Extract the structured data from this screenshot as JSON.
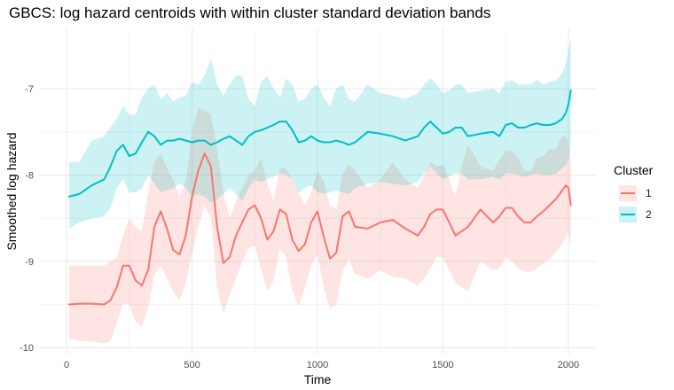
{
  "title": "GBCS: log hazard centroids with within cluster standard deviation bands",
  "legend": {
    "title": "Cluster",
    "items": [
      {
        "label": "1",
        "color": "#F8766D"
      },
      {
        "label": "2",
        "color": "#00BFC4"
      }
    ]
  },
  "chart_data": {
    "type": "line",
    "title": "GBCS: log hazard centroids with within cluster standard deviation bands",
    "xlabel": "Time",
    "ylabel": "Smoothed log hazard",
    "xlim": [
      -110,
      2110
    ],
    "ylim": [
      -10.08,
      -6.3
    ],
    "x_ticks": [
      0,
      500,
      1000,
      1500,
      2000
    ],
    "y_ticks": [
      -10,
      -9,
      -8,
      -7
    ],
    "grid": true,
    "legend_position": "right",
    "series": [
      {
        "name": "1",
        "color": "#F8766D",
        "x": [
          10,
          50,
          100,
          150,
          175,
          200,
          225,
          250,
          275,
          300,
          325,
          350,
          375,
          400,
          425,
          450,
          475,
          500,
          525,
          550,
          575,
          600,
          625,
          650,
          675,
          700,
          725,
          750,
          775,
          800,
          825,
          850,
          875,
          900,
          925,
          950,
          975,
          1000,
          1025,
          1050,
          1075,
          1100,
          1125,
          1150,
          1200,
          1250,
          1300,
          1350,
          1400,
          1425,
          1450,
          1475,
          1500,
          1525,
          1550,
          1575,
          1600,
          1650,
          1700,
          1725,
          1750,
          1775,
          1800,
          1825,
          1850,
          1875,
          1900,
          1925,
          1950,
          1975,
          1990,
          2000,
          2010
        ],
        "y": [
          -9.5,
          -9.49,
          -9.49,
          -9.5,
          -9.45,
          -9.3,
          -9.05,
          -9.05,
          -9.22,
          -9.28,
          -9.1,
          -8.6,
          -8.42,
          -8.62,
          -8.87,
          -8.92,
          -8.7,
          -8.25,
          -7.95,
          -7.75,
          -7.9,
          -8.6,
          -9.02,
          -8.95,
          -8.7,
          -8.55,
          -8.4,
          -8.35,
          -8.5,
          -8.75,
          -8.65,
          -8.4,
          -8.45,
          -8.75,
          -8.88,
          -8.8,
          -8.55,
          -8.42,
          -8.72,
          -8.97,
          -8.9,
          -8.48,
          -8.42,
          -8.6,
          -8.62,
          -8.55,
          -8.52,
          -8.62,
          -8.7,
          -8.6,
          -8.45,
          -8.4,
          -8.4,
          -8.55,
          -8.7,
          -8.65,
          -8.6,
          -8.4,
          -8.55,
          -8.48,
          -8.38,
          -8.38,
          -8.48,
          -8.55,
          -8.55,
          -8.48,
          -8.42,
          -8.35,
          -8.28,
          -8.18,
          -8.12,
          -8.15,
          -8.35
        ],
        "band_upper": [
          -9.05,
          -9.05,
          -9.05,
          -9.05,
          -9.0,
          -8.95,
          -8.7,
          -8.5,
          -8.6,
          -8.65,
          -8.2,
          -7.85,
          -7.75,
          -7.92,
          -8.05,
          -8.25,
          -8.08,
          -7.5,
          -7.22,
          -7.25,
          -7.3,
          -7.7,
          -8.2,
          -8.5,
          -8.3,
          -8.15,
          -8.0,
          -7.95,
          -7.8,
          -8.1,
          -8.3,
          -7.92,
          -7.92,
          -8.05,
          -8.2,
          -8.35,
          -8.2,
          -7.95,
          -8.08,
          -8.35,
          -8.4,
          -8.0,
          -7.88,
          -7.95,
          -8.15,
          -8.05,
          -7.85,
          -8.05,
          -8.15,
          -8.0,
          -7.85,
          -7.9,
          -7.88,
          -8.05,
          -8.25,
          -7.9,
          -7.65,
          -7.9,
          -7.95,
          -7.82,
          -7.72,
          -7.72,
          -7.8,
          -7.95,
          -7.95,
          -7.8,
          -7.78,
          -7.7,
          -7.7,
          -7.55,
          -7.55,
          -7.65,
          -7.82
        ],
        "band_lower": [
          -9.9,
          -9.92,
          -9.93,
          -9.95,
          -9.92,
          -9.72,
          -9.5,
          -9.5,
          -9.7,
          -9.75,
          -9.55,
          -9.15,
          -9.05,
          -9.2,
          -9.35,
          -9.45,
          -9.25,
          -8.9,
          -8.6,
          -8.35,
          -8.5,
          -9.3,
          -9.6,
          -9.4,
          -9.2,
          -9.0,
          -8.85,
          -8.82,
          -9.08,
          -9.35,
          -9.22,
          -8.85,
          -8.95,
          -9.35,
          -9.52,
          -9.3,
          -9.05,
          -8.92,
          -9.3,
          -9.55,
          -9.5,
          -9.1,
          -8.98,
          -9.15,
          -9.2,
          -9.1,
          -9.18,
          -9.2,
          -9.28,
          -9.2,
          -9.08,
          -8.95,
          -8.95,
          -9.1,
          -9.25,
          -9.3,
          -9.35,
          -9.0,
          -9.1,
          -9.08,
          -8.95,
          -9.0,
          -9.08,
          -9.12,
          -9.12,
          -9.08,
          -9.02,
          -8.98,
          -8.9,
          -8.8,
          -8.72,
          -8.65,
          -8.85
        ]
      },
      {
        "name": "2",
        "color": "#00BFC4",
        "x": [
          10,
          50,
          100,
          150,
          175,
          200,
          225,
          250,
          275,
          300,
          325,
          350,
          375,
          400,
          425,
          450,
          475,
          500,
          525,
          550,
          575,
          600,
          625,
          650,
          675,
          700,
          725,
          750,
          775,
          800,
          825,
          850,
          875,
          900,
          925,
          950,
          975,
          1000,
          1025,
          1050,
          1075,
          1100,
          1125,
          1150,
          1200,
          1250,
          1300,
          1350,
          1400,
          1425,
          1450,
          1475,
          1500,
          1525,
          1550,
          1575,
          1600,
          1650,
          1700,
          1725,
          1750,
          1775,
          1800,
          1825,
          1850,
          1875,
          1900,
          1925,
          1950,
          1975,
          1990,
          2000,
          2010
        ],
        "y": [
          -8.25,
          -8.22,
          -8.12,
          -8.05,
          -7.9,
          -7.72,
          -7.65,
          -7.78,
          -7.75,
          -7.62,
          -7.5,
          -7.55,
          -7.65,
          -7.6,
          -7.6,
          -7.58,
          -7.6,
          -7.62,
          -7.6,
          -7.6,
          -7.65,
          -7.62,
          -7.58,
          -7.55,
          -7.6,
          -7.65,
          -7.55,
          -7.5,
          -7.48,
          -7.45,
          -7.42,
          -7.38,
          -7.38,
          -7.48,
          -7.62,
          -7.6,
          -7.55,
          -7.6,
          -7.62,
          -7.62,
          -7.6,
          -7.62,
          -7.65,
          -7.62,
          -7.5,
          -7.52,
          -7.55,
          -7.6,
          -7.55,
          -7.45,
          -7.38,
          -7.45,
          -7.52,
          -7.5,
          -7.45,
          -7.45,
          -7.55,
          -7.52,
          -7.5,
          -7.55,
          -7.42,
          -7.4,
          -7.45,
          -7.45,
          -7.42,
          -7.4,
          -7.42,
          -7.42,
          -7.4,
          -7.35,
          -7.28,
          -7.18,
          -7.02
        ],
        "band_upper": [
          -7.85,
          -7.85,
          -7.6,
          -7.55,
          -7.45,
          -7.35,
          -7.2,
          -7.3,
          -7.3,
          -7.1,
          -7.0,
          -6.95,
          -7.12,
          -7.05,
          -7.15,
          -7.1,
          -7.08,
          -6.92,
          -6.95,
          -6.85,
          -6.65,
          -6.95,
          -7.08,
          -6.95,
          -6.85,
          -6.85,
          -7.12,
          -7.2,
          -6.92,
          -6.85,
          -7.0,
          -7.1,
          -6.88,
          -6.95,
          -7.15,
          -7.12,
          -7.0,
          -6.95,
          -7.1,
          -7.2,
          -7.0,
          -6.95,
          -7.12,
          -7.15,
          -6.95,
          -7.05,
          -7.08,
          -7.12,
          -7.05,
          -6.95,
          -6.88,
          -6.95,
          -7.05,
          -7.02,
          -6.95,
          -6.95,
          -7.05,
          -7.02,
          -7.0,
          -7.05,
          -6.92,
          -6.9,
          -6.95,
          -6.95,
          -6.95,
          -6.9,
          -6.95,
          -6.92,
          -6.9,
          -6.82,
          -6.7,
          -6.55,
          -6.42
        ],
        "band_lower": [
          -8.62,
          -8.55,
          -8.5,
          -8.48,
          -8.38,
          -8.15,
          -8.05,
          -8.2,
          -8.2,
          -8.15,
          -8.0,
          -8.1,
          -8.2,
          -8.18,
          -8.15,
          -8.1,
          -8.15,
          -8.25,
          -8.22,
          -8.25,
          -8.32,
          -8.28,
          -8.22,
          -8.15,
          -8.22,
          -8.3,
          -8.15,
          -8.05,
          -8.08,
          -8.05,
          -8.02,
          -7.98,
          -8.0,
          -8.05,
          -8.2,
          -8.15,
          -8.12,
          -8.2,
          -8.22,
          -8.2,
          -8.18,
          -8.2,
          -8.22,
          -8.15,
          -8.1,
          -8.08,
          -8.1,
          -8.12,
          -8.08,
          -7.98,
          -7.9,
          -7.98,
          -8.05,
          -8.02,
          -7.98,
          -7.98,
          -8.05,
          -8.05,
          -8.02,
          -8.05,
          -7.98,
          -7.98,
          -8.0,
          -8.02,
          -8.0,
          -7.98,
          -8.0,
          -8.0,
          -7.98,
          -7.92,
          -7.88,
          -7.82,
          -7.65
        ]
      }
    ]
  }
}
